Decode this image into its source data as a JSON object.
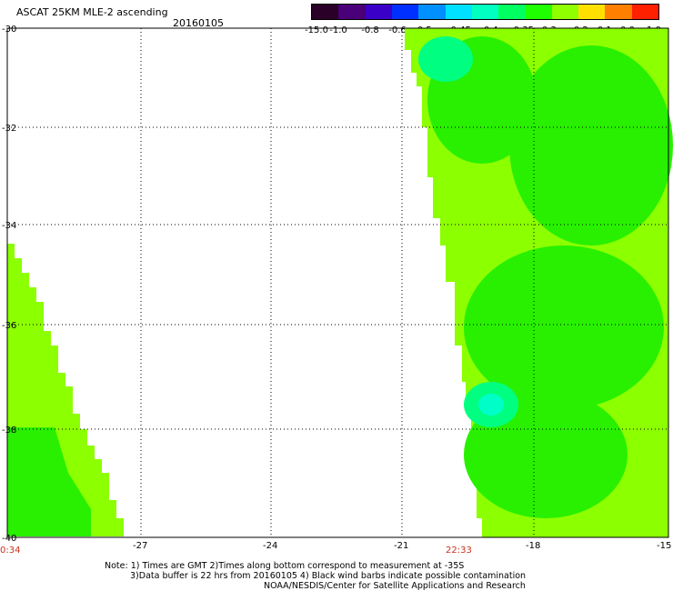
{
  "header": {
    "title": "ASCAT 25KM MLE-2 ascending",
    "date": "20160105"
  },
  "colorbar": {
    "labels": [
      "-15.0",
      "-1.0",
      "-0.8",
      "-0.6",
      "-0.5",
      "-0.45",
      "-0.4",
      "-0.35",
      "-0.3",
      "-0.2",
      "-0.1",
      "0.0",
      "1.0"
    ],
    "colors": [
      "#2a0028",
      "#4a0078",
      "#3a00c8",
      "#0030ff",
      "#0090ff",
      "#00e0ff",
      "#00ffc0",
      "#00ff60",
      "#20ff00",
      "#90ff00",
      "#ffe000",
      "#ff8000",
      "#ff2000"
    ]
  },
  "map": {
    "lat_labels": [
      "-30",
      "-32",
      "-34",
      "-36",
      "-38",
      "-40"
    ],
    "lon_labels": [
      "-27",
      "-24",
      "-21",
      "-18",
      "-15"
    ],
    "colors": {
      "green": "#28f000",
      "lightgreen": "#8cff00",
      "cyan": "#00ffc8",
      "teal": "#00ff80"
    }
  },
  "time_labels": {
    "left": "0:34",
    "mid": "22:33"
  },
  "notes": {
    "line1": "Note: 1) Times are GMT 2)Times along bottom correspond to measurement at -35S",
    "line2": "3)Data buffer is 22 hrs from 20160105 4) Black wind barbs indicate possible contamination",
    "line3": "NOAA/NESDIS/Center for Satellite Applications and Research"
  }
}
